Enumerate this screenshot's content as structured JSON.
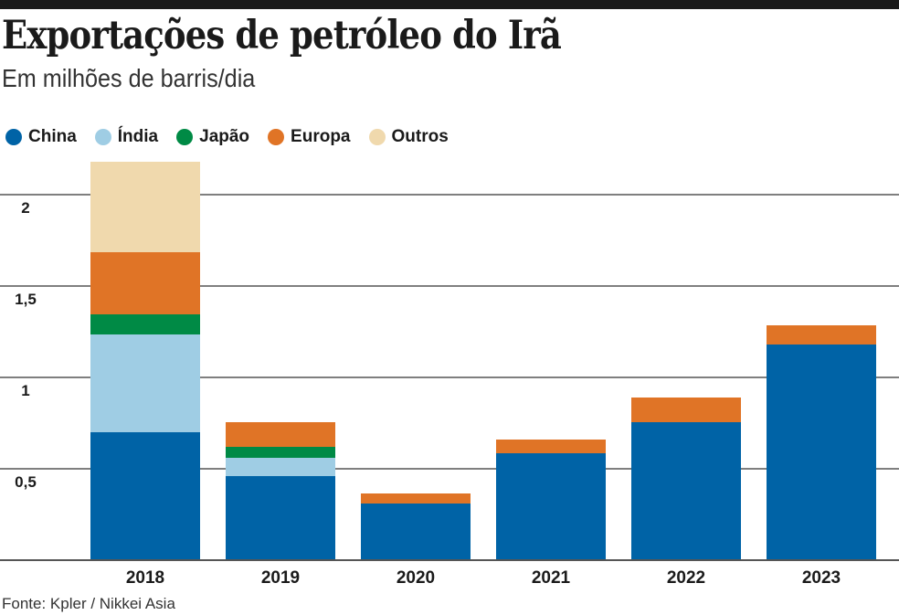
{
  "title": "Exportações de petróleo do Irã",
  "subtitle": "Em milhões de barris/dia",
  "source": "Fonte: Kpler / Nikkei Asia",
  "chart_data": {
    "type": "bar",
    "stacked": true,
    "categories": [
      "2018",
      "2019",
      "2020",
      "2021",
      "2022",
      "2023"
    ],
    "series": [
      {
        "name": "China",
        "color": "#0063a6",
        "values": [
          0.7,
          0.46,
          0.31,
          0.585,
          0.755,
          1.18
        ]
      },
      {
        "name": "Índia",
        "color": "#9fcde4",
        "values": [
          0.535,
          0.1,
          0,
          0,
          0,
          0
        ]
      },
      {
        "name": "Japão",
        "color": "#008a45",
        "values": [
          0.11,
          0.06,
          0,
          0,
          0,
          0
        ]
      },
      {
        "name": "Europa",
        "color": "#e07426",
        "values": [
          0.34,
          0.135,
          0.055,
          0.075,
          0.135,
          0.105
        ]
      },
      {
        "name": "Outros",
        "color": "#f0d9ad",
        "values": [
          0.495,
          0,
          0,
          0,
          0,
          0
        ]
      }
    ],
    "yticks": [
      0.5,
      1,
      1.5,
      2
    ],
    "ytick_labels": [
      "0,5",
      "1",
      "1,5",
      "2"
    ],
    "ylim": [
      0,
      2.2
    ],
    "grid": true,
    "legend_position": "top-left",
    "xlabel": "",
    "ylabel": ""
  }
}
